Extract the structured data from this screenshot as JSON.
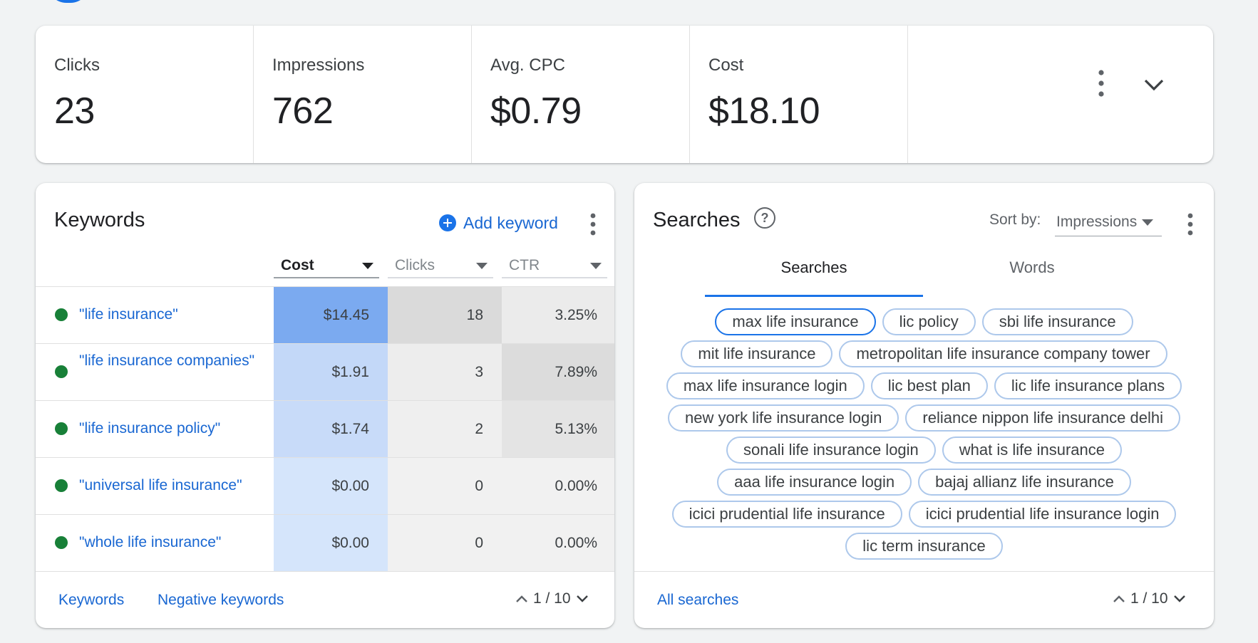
{
  "metrics": [
    {
      "label": "Clicks",
      "value": "23"
    },
    {
      "label": "Impressions",
      "value": "762"
    },
    {
      "label": "Avg. CPC",
      "value": "$0.79"
    },
    {
      "label": "Cost",
      "value": "$18.10"
    }
  ],
  "keywords": {
    "title": "Keywords",
    "add_label": "Add keyword",
    "columns": [
      "Cost",
      "Clicks",
      "CTR"
    ],
    "rows": [
      {
        "name": "\"life insurance\"",
        "cost": "$14.45",
        "clicks": "18",
        "ctr": "3.25%"
      },
      {
        "name": "\"life insurance companies\"",
        "cost": "$1.91",
        "clicks": "3",
        "ctr": "7.89%"
      },
      {
        "name": "\"life insurance policy\"",
        "cost": "$1.74",
        "clicks": "2",
        "ctr": "5.13%"
      },
      {
        "name": "\"universal life insurance\"",
        "cost": "$0.00",
        "clicks": "0",
        "ctr": "0.00%"
      },
      {
        "name": "\"whole life insurance\"",
        "cost": "$0.00",
        "clicks": "0",
        "ctr": "0.00%"
      }
    ],
    "footer_links": [
      "Keywords",
      "Negative keywords"
    ],
    "pager": "1 / 10"
  },
  "searches": {
    "title": "Searches",
    "sort_label": "Sort by:",
    "sort_value": "Impressions",
    "tabs": [
      "Searches",
      "Words"
    ],
    "chips": [
      "max life insurance",
      "lic policy",
      "sbi life insurance",
      "mit life insurance",
      "metropolitan life insurance company tower",
      "max life insurance login",
      "lic best plan",
      "lic life insurance plans",
      "new york life insurance login",
      "reliance nippon life insurance delhi",
      "sonali life insurance login",
      "what is life insurance",
      "aaa life insurance login",
      "bajaj allianz life insurance",
      "icici prudential life insurance",
      "icici prudential life insurance login",
      "lic term insurance"
    ],
    "footer_link": "All searches",
    "pager": "1 / 10"
  },
  "colors": {
    "accent": "#1a73e8",
    "link": "#1967d2",
    "status_green": "#188038"
  },
  "icons": {
    "more": "more-vert-icon",
    "expand": "chevron-down-icon",
    "add": "add-circle-icon",
    "help": "help-icon"
  }
}
